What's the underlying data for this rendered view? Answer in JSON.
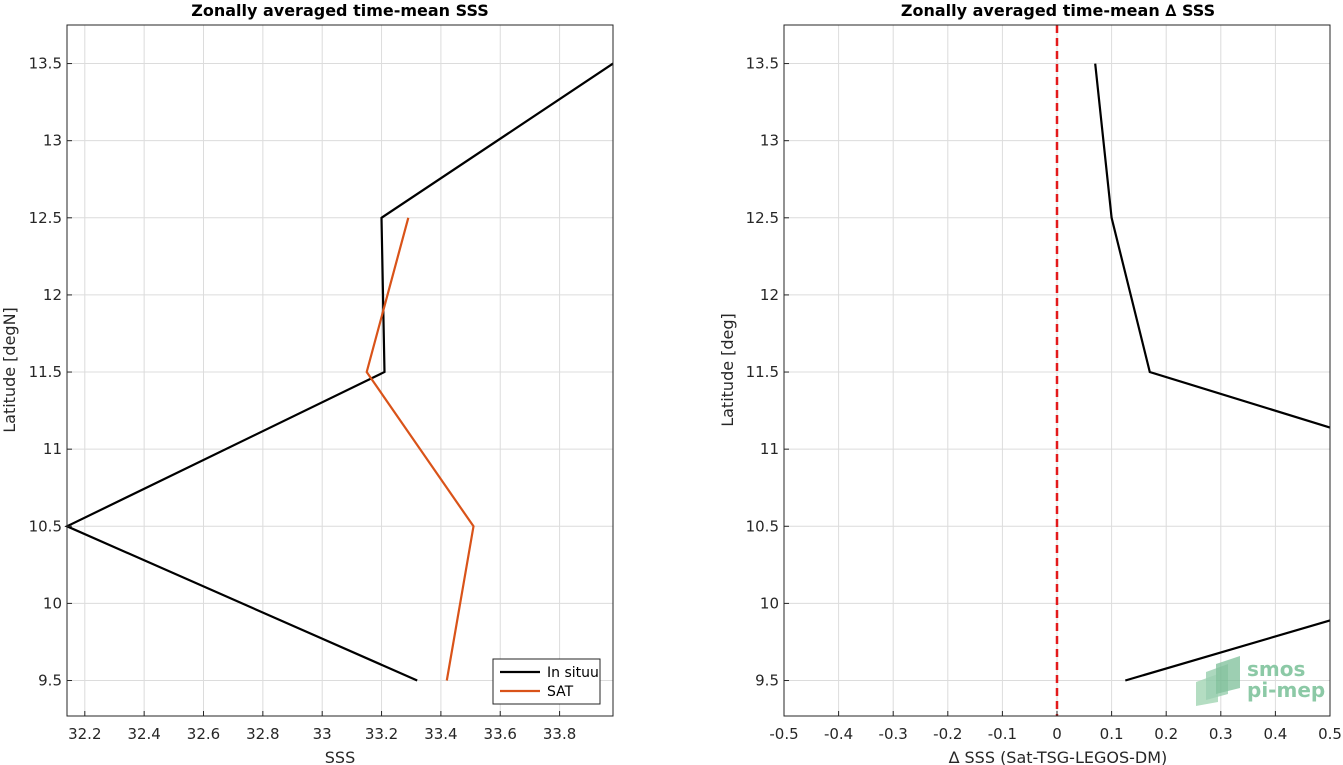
{
  "chart_data": [
    {
      "type": "line",
      "title": "Zonally averaged time-mean SSS",
      "xlabel": "SSS",
      "ylabel": "Latitude [degN]",
      "xlim": [
        32.14,
        33.98
      ],
      "ylim": [
        9.27,
        13.75
      ],
      "xticks": [
        32.2,
        32.4,
        32.6,
        32.8,
        33,
        33.2,
        33.4,
        33.6,
        33.8
      ],
      "xtick_labels": [
        "32.2",
        "32.4",
        "32.6",
        "32.8",
        "33",
        "33.2",
        "33.4",
        "33.6",
        "33.8"
      ],
      "yticks": [
        9.5,
        10,
        10.5,
        11,
        11.5,
        12,
        12.5,
        13,
        13.5
      ],
      "ytick_labels": [
        "9.5",
        "10",
        "10.5",
        "11",
        "11.5",
        "12",
        "12.5",
        "13",
        "13.5"
      ],
      "grid": true,
      "legend": "bottom-right",
      "series": [
        {
          "name": "In situu",
          "color": "#000000",
          "points": [
            [
              33.32,
              9.5
            ],
            [
              32.14,
              10.5
            ],
            [
              33.21,
              11.5
            ],
            [
              33.2,
              12.5
            ],
            [
              33.98,
              13.5
            ]
          ]
        },
        {
          "name": "SAT",
          "color": "#d95319",
          "points": [
            [
              33.42,
              9.5
            ],
            [
              33.51,
              10.5
            ],
            [
              33.15,
              11.5
            ],
            [
              33.29,
              12.5
            ]
          ]
        }
      ]
    },
    {
      "type": "line",
      "title": "Zonally averaged time-mean ∆ SSS",
      "xlabel": "∆ SSS (Sat-TSG-LEGOS-DM)",
      "ylabel": "Latitude [deg]",
      "xlim": [
        -0.5,
        0.5
      ],
      "ylim": [
        9.27,
        13.75
      ],
      "xticks": [
        -0.5,
        -0.4,
        -0.3,
        -0.2,
        -0.1,
        0,
        0.1,
        0.2,
        0.3,
        0.4,
        0.5
      ],
      "xtick_labels": [
        "-0.5",
        "-0.4",
        "-0.3",
        "-0.2",
        "-0.1",
        "0",
        "0.1",
        "0.2",
        "0.3",
        "0.4",
        "0.5"
      ],
      "yticks": [
        9.5,
        10,
        10.5,
        11,
        11.5,
        12,
        12.5,
        13,
        13.5
      ],
      "ytick_labels": [
        "9.5",
        "10",
        "10.5",
        "11",
        "11.5",
        "12",
        "12.5",
        "13",
        "13.5"
      ],
      "grid": true,
      "reference_line": {
        "x": 0,
        "color": "#e31a1c",
        "style": "dashed"
      },
      "series": [
        {
          "color": "#000000",
          "segments": [
            [
              [
                0.125,
                9.5
              ],
              [
                0.5,
                9.89
              ]
            ],
            [
              [
                0.5,
                11.14
              ],
              [
                0.17,
                11.5
              ],
              [
                0.1,
                12.5
              ],
              [
                0.07,
                13.5
              ]
            ]
          ]
        }
      ]
    }
  ],
  "logo": {
    "line1": "smos",
    "line2": "pi-mep",
    "color": "#8cc9a6"
  }
}
